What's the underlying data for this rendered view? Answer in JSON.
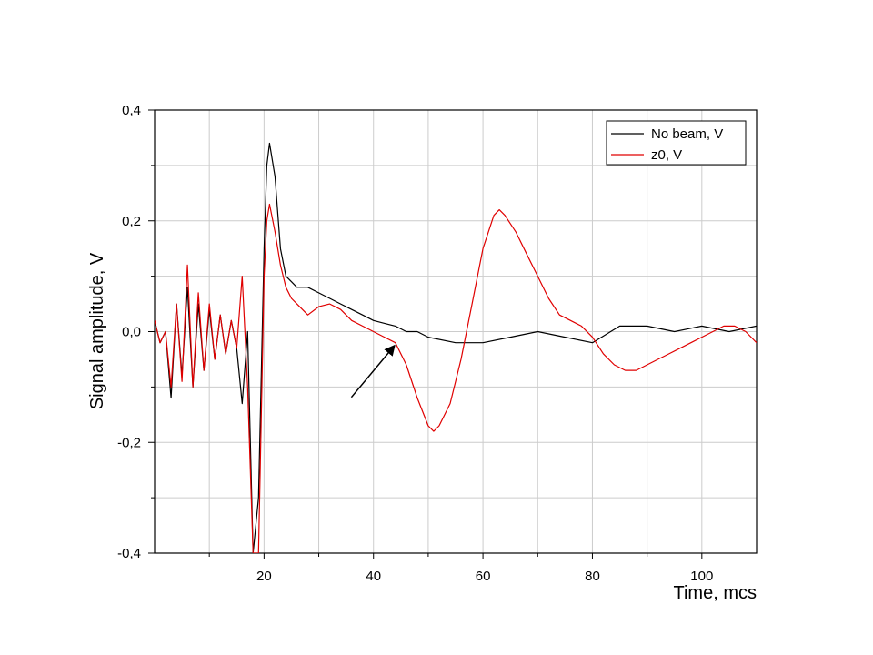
{
  "chart_data": {
    "type": "line",
    "title": "",
    "xlabel": "Time, mcs",
    "ylabel": "Signal amplitude, V",
    "xlim": [
      0,
      110
    ],
    "ylim": [
      -0.4,
      0.4
    ],
    "x_ticks": [
      20,
      40,
      60,
      80,
      100
    ],
    "x_tick_labels": [
      "20",
      "40",
      "60",
      "80",
      "100"
    ],
    "y_ticks": [
      -0.4,
      -0.2,
      0.0,
      0.2,
      0.4
    ],
    "y_tick_labels": [
      "-0,4",
      "-0,2",
      "0,0",
      "0,2",
      "0,4"
    ],
    "grid": true,
    "legend_position": "top-right",
    "series": [
      {
        "name": "No beam, V",
        "color": "#000000",
        "x": [
          0,
          1,
          2,
          3,
          4,
          5,
          6,
          7,
          8,
          9,
          10,
          11,
          12,
          13,
          14,
          15,
          16,
          17,
          18,
          19,
          20,
          20.5,
          21,
          22,
          23,
          24,
          25,
          26,
          28,
          30,
          32,
          34,
          36,
          38,
          40,
          42,
          44,
          46,
          48,
          50,
          55,
          60,
          65,
          70,
          75,
          80,
          85,
          90,
          95,
          100,
          105,
          110
        ],
        "y": [
          0.02,
          -0.02,
          0.0,
          -0.12,
          0.05,
          -0.08,
          0.08,
          -0.1,
          0.05,
          -0.07,
          0.04,
          -0.05,
          0.03,
          -0.04,
          0.02,
          -0.03,
          -0.13,
          0.0,
          -0.4,
          -0.3,
          0.15,
          0.3,
          0.34,
          0.28,
          0.15,
          0.1,
          0.09,
          0.08,
          0.08,
          0.07,
          0.06,
          0.05,
          0.04,
          0.03,
          0.02,
          0.015,
          0.01,
          0.0,
          0.0,
          -0.01,
          -0.02,
          -0.02,
          -0.01,
          0.0,
          -0.01,
          -0.02,
          0.01,
          0.01,
          0.0,
          0.01,
          0.0,
          0.01
        ]
      },
      {
        "name": "z0, V",
        "color": "#e00000",
        "x": [
          0,
          1,
          2,
          3,
          4,
          5,
          6,
          7,
          8,
          9,
          10,
          11,
          12,
          13,
          14,
          15,
          16,
          17,
          18,
          19,
          20,
          20.5,
          21,
          22,
          23,
          24,
          25,
          26,
          28,
          30,
          32,
          34,
          36,
          38,
          40,
          42,
          44,
          46,
          48,
          50,
          51,
          52,
          54,
          56,
          58,
          60,
          62,
          63,
          64,
          66,
          68,
          70,
          72,
          74,
          76,
          78,
          80,
          82,
          84,
          86,
          88,
          90,
          92,
          94,
          96,
          98,
          100,
          102,
          104,
          106,
          108,
          110
        ],
        "y": [
          0.02,
          -0.02,
          0.0,
          -0.1,
          0.05,
          -0.09,
          0.12,
          -0.1,
          0.07,
          -0.07,
          0.05,
          -0.05,
          0.03,
          -0.04,
          0.02,
          -0.03,
          0.1,
          -0.1,
          -0.4,
          -0.4,
          0.1,
          0.2,
          0.23,
          0.18,
          0.12,
          0.08,
          0.06,
          0.05,
          0.03,
          0.045,
          0.05,
          0.04,
          0.02,
          0.01,
          0.0,
          -0.01,
          -0.02,
          -0.06,
          -0.12,
          -0.17,
          -0.18,
          -0.17,
          -0.13,
          -0.05,
          0.05,
          0.15,
          0.21,
          0.22,
          0.21,
          0.18,
          0.14,
          0.1,
          0.06,
          0.03,
          0.02,
          0.01,
          -0.01,
          -0.04,
          -0.06,
          -0.07,
          -0.07,
          -0.06,
          -0.05,
          -0.04,
          -0.03,
          -0.02,
          -0.01,
          0.0,
          0.01,
          0.01,
          0.0,
          -0.02
        ]
      }
    ],
    "annotations": [
      {
        "type": "arrow",
        "from": [
          -22,
          -0.1
        ],
        "to": [
          -16,
          -0.03
        ],
        "target_x": 44,
        "target_y": -0.02
      }
    ]
  }
}
